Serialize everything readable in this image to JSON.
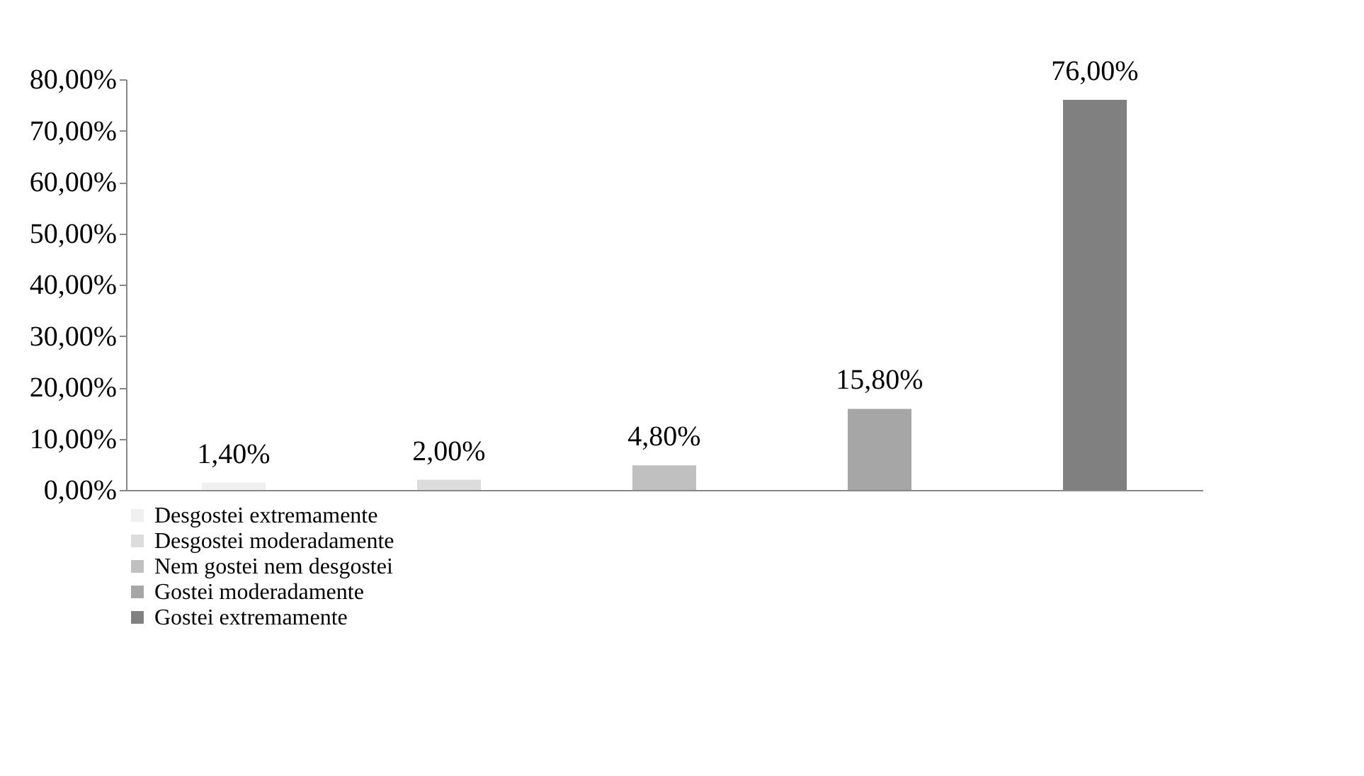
{
  "chart_data": {
    "type": "bar",
    "categories": [
      null,
      null,
      null,
      null,
      null
    ],
    "series": [
      {
        "name": "Desgostei extremamente",
        "color": "#f0f0f0",
        "values": [
          1.4,
          null,
          null,
          null,
          null
        ],
        "value_labels": [
          "1,40%",
          null,
          null,
          null,
          null
        ]
      },
      {
        "name": "Desgostei moderadamente",
        "color": "#dcdcdc",
        "values": [
          null,
          2.0,
          null,
          null,
          null
        ],
        "value_labels": [
          null,
          "2,00%",
          null,
          null,
          null
        ]
      },
      {
        "name": "Nem gostei nem desgostei",
        "color": "#c0c0c0",
        "values": [
          null,
          null,
          4.8,
          null,
          null
        ],
        "value_labels": [
          null,
          null,
          "4,80%",
          null,
          null
        ]
      },
      {
        "name": "Gostei moderadamente",
        "color": "#a6a6a6",
        "values": [
          null,
          null,
          null,
          15.8,
          null
        ],
        "value_labels": [
          null,
          null,
          null,
          "15,80%",
          null
        ]
      },
      {
        "name": "Gostei extremamente",
        "color": "#808080",
        "values": [
          null,
          null,
          null,
          null,
          76.0
        ],
        "value_labels": [
          null,
          null,
          null,
          null,
          "76,00%"
        ]
      }
    ],
    "ylim": [
      0,
      80
    ],
    "yticks": [
      {
        "value": 0,
        "label": "0,00%"
      },
      {
        "value": 10,
        "label": "10,00%"
      },
      {
        "value": 20,
        "label": "20,00%"
      },
      {
        "value": 30,
        "label": "30,00%"
      },
      {
        "value": 40,
        "label": "40,00%"
      },
      {
        "value": 50,
        "label": "50,00%"
      },
      {
        "value": 60,
        "label": "60,00%"
      },
      {
        "value": 70,
        "label": "70,00%"
      },
      {
        "value": 80,
        "label": "80,00%"
      }
    ],
    "tick_labels": "y",
    "grid": false,
    "legend": "bottom left"
  }
}
